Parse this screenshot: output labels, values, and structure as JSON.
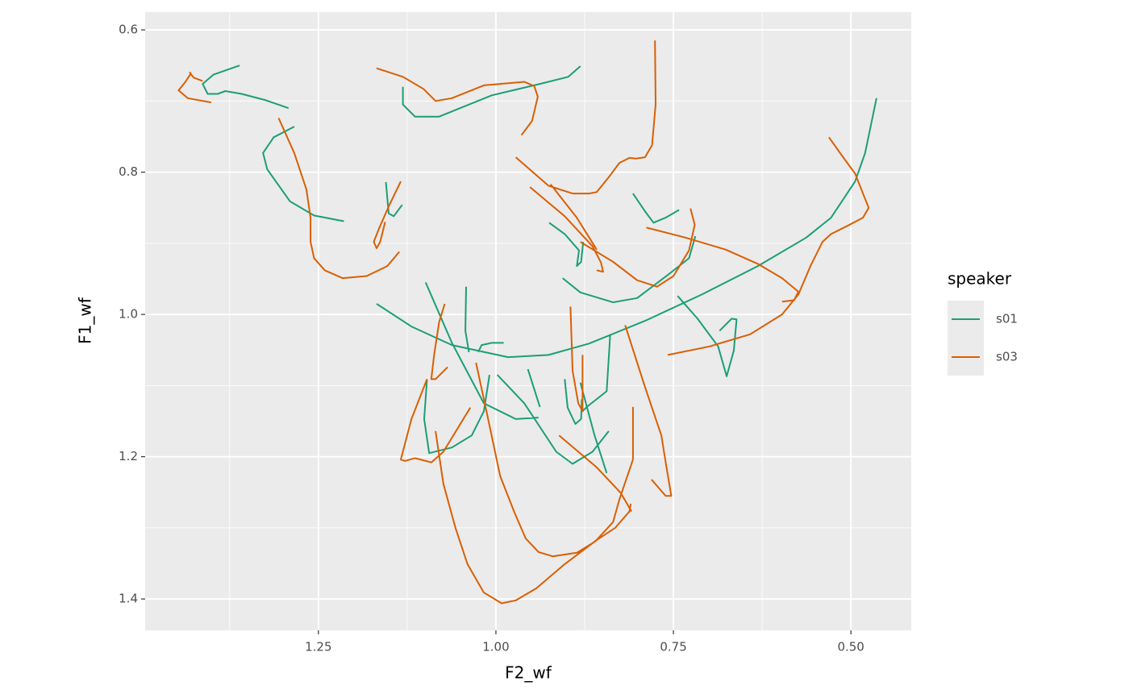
{
  "chart_data": {
    "type": "line",
    "x_label": "F2_wf",
    "y_label": "F1_wf",
    "legend_title": "speaker",
    "legend": "right",
    "xlim": [
      1.494,
      0.415
    ],
    "ylim": [
      1.444,
      0.575
    ],
    "xticks": [
      1.25,
      {
        "value": 1,
        "label": "1.00"
      },
      0.75,
      {
        "value": 0.5,
        "label": "0.50"
      }
    ],
    "yticks": [
      0.6,
      0.8,
      {
        "value": 1,
        "label": "1.0"
      },
      1.2,
      1.4
    ],
    "xminor": [
      1.375,
      1.125,
      0.875,
      0.625
    ],
    "yminor": [
      0.7,
      0.9,
      1.1,
      1.3
    ],
    "grid": true,
    "series": [
      {
        "name": "s01",
        "color": "#1b9e77",
        "x": [
          1.361,
          1.398,
          1.413,
          1.406,
          1.392,
          1.381,
          1.358,
          1.324,
          1.292,
          null,
          0.881,
          0.898,
          0.938,
          1.006,
          1.08,
          1.114,
          1.131,
          1.131,
          null,
          1.284,
          1.313,
          1.328,
          1.322,
          1.29,
          1.256,
          1.214,
          null,
          1.155,
          1.151,
          1.144,
          1.132,
          null,
          1.168,
          1.119,
          1.062,
          0.983,
          0.926,
          0.869,
          0.79,
          0.71,
          0.631,
          0.563,
          0.528,
          0.494,
          0.48,
          0.464,
          null,
          0.807,
          0.79,
          0.778,
          0.761,
          0.742,
          null,
          0.925,
          0.903,
          0.883,
          0.886,
          0.88,
          0.877,
          null,
          0.906,
          0.881,
          0.835,
          0.801,
          0.756,
          0.728,
          0.719,
          null,
          0.744,
          0.716,
          0.687,
          0.675,
          0.665,
          0.661,
          0.668,
          0.685,
          null,
          1.042,
          1.043,
          1.038,
          null,
          1.025,
          1.02,
          1.006,
          0.989,
          null,
          1.099,
          1.062,
          1.017,
          0.972,
          0.94,
          null,
          1.097,
          1.101,
          1.094,
          1.062,
          1.034,
          1.017,
          1.009,
          null,
          0.998,
          0.96,
          0.915,
          0.892,
          0.864,
          0.841,
          null,
          0.903,
          0.899,
          0.888,
          0.88,
          0.879,
          null,
          0.881,
          0.861,
          0.844,
          null,
          0.839,
          0.844,
          0.858,
          0.872,
          0.878,
          null,
          0.955,
          0.938
        ],
        "values": [
          0.65,
          0.663,
          0.676,
          0.69,
          0.69,
          0.686,
          0.69,
          0.699,
          0.71,
          null,
          0.651,
          0.666,
          0.676,
          0.692,
          0.722,
          0.722,
          0.705,
          0.68,
          null,
          0.736,
          0.751,
          0.773,
          0.796,
          0.841,
          0.861,
          0.869,
          null,
          0.814,
          0.858,
          0.862,
          0.846,
          null,
          0.985,
          1.017,
          1.043,
          1.06,
          1.057,
          1.041,
          1.009,
          0.972,
          0.932,
          0.892,
          0.864,
          0.813,
          0.773,
          0.696,
          null,
          0.83,
          0.855,
          0.871,
          0.864,
          0.853,
          null,
          0.871,
          0.887,
          0.91,
          0.932,
          0.926,
          0.898,
          null,
          0.949,
          0.969,
          0.983,
          0.977,
          0.943,
          0.921,
          0.89,
          null,
          0.974,
          1.006,
          1.045,
          1.087,
          1.051,
          1.007,
          1.006,
          1.023,
          null,
          0.961,
          1.023,
          1.053,
          null,
          1.053,
          1.043,
          1.04,
          1.04,
          null,
          0.955,
          1.04,
          1.125,
          1.147,
          1.145,
          null,
          1.091,
          1.147,
          1.195,
          1.187,
          1.17,
          1.136,
          1.085,
          null,
          1.085,
          1.125,
          1.193,
          1.21,
          1.193,
          1.164,
          null,
          1.091,
          1.131,
          1.154,
          1.147,
          1.119,
          null,
          1.096,
          1.17,
          1.223,
          null,
          1.028,
          1.108,
          1.119,
          1.13,
          1.136,
          null,
          1.077,
          1.13
        ]
      },
      {
        "name": "s03",
        "color": "#d95f02",
        "x": [
          1.401,
          1.434,
          1.447,
          1.438,
          1.43,
          1.431,
          1.426,
          1.413,
          null,
          1.168,
          1.131,
          1.102,
          1.085,
          1.062,
          1.017,
          0.96,
          0.946,
          0.941,
          0.949,
          0.964,
          null,
          0.776,
          0.775,
          0.78,
          0.79,
          0.803,
          0.812,
          0.826,
          0.841,
          0.858,
          0.869,
          0.892,
          0.926,
          0.972,
          null,
          1.306,
          1.284,
          1.267,
          1.261,
          1.261,
          1.256,
          1.241,
          1.216,
          1.182,
          1.153,
          1.136,
          null,
          1.134,
          1.15,
          1.165,
          1.172,
          1.168,
          1.163,
          1.156,
          null,
          0.952,
          0.903,
          0.864,
          0.852,
          0.849,
          0.858,
          null,
          0.923,
          0.886,
          0.858,
          null,
          0.881,
          0.835,
          0.801,
          0.773,
          0.75,
          0.728,
          0.72,
          0.726,
          null,
          0.788,
          0.733,
          0.676,
          0.631,
          0.597,
          0.574,
          0.58,
          0.597,
          null,
          0.758,
          0.699,
          0.642,
          0.597,
          0.574,
          0.557,
          0.54,
          0.528,
          0.506,
          0.483,
          0.475,
          0.483,
          0.494,
          0.511,
          0.531,
          null,
          1.072,
          1.08,
          1.087,
          1.091,
          1.085,
          1.068,
          null,
          1.097,
          1.119,
          1.134,
          1.128,
          1.114,
          1.091,
          1.074,
          1.036,
          null,
          1.085,
          1.074,
          1.057,
          1.04,
          1.017,
          0.992,
          0.972,
          0.943,
          0.903,
          0.858,
          0.832,
          0.812,
          0.81,
          null,
          1.028,
          1.011,
          0.994,
          0.974,
          0.958,
          0.94,
          0.92,
          0.886,
          0.86,
          0.835,
          0.826,
          0.807,
          0.807,
          null,
          0.911,
          0.858,
          0.824,
          0.809,
          null,
          0.895,
          0.892,
          0.884,
          0.878,
          0.878,
          null,
          0.818,
          0.79,
          0.767,
          0.76,
          0.753,
          0.761,
          0.781
        ],
        "values": [
          0.702,
          0.696,
          0.685,
          0.674,
          0.662,
          0.66,
          0.667,
          0.672,
          null,
          0.654,
          0.666,
          0.683,
          0.7,
          0.696,
          0.678,
          0.673,
          0.679,
          0.694,
          0.728,
          0.748,
          null,
          0.615,
          0.705,
          0.762,
          0.779,
          0.781,
          0.78,
          0.787,
          0.807,
          0.828,
          0.83,
          0.83,
          0.819,
          0.779,
          null,
          0.724,
          0.773,
          0.824,
          0.864,
          0.898,
          0.921,
          0.938,
          0.949,
          0.946,
          0.932,
          0.912,
          null,
          0.813,
          0.846,
          0.88,
          0.898,
          0.907,
          0.898,
          0.87,
          null,
          0.821,
          0.862,
          0.904,
          0.927,
          0.94,
          0.938,
          null,
          0.817,
          0.864,
          0.909,
          null,
          0.898,
          0.926,
          0.952,
          0.961,
          0.946,
          0.91,
          0.874,
          0.851,
          null,
          0.878,
          0.892,
          0.909,
          0.929,
          0.949,
          0.968,
          0.98,
          0.982,
          null,
          1.057,
          1.045,
          1.028,
          1.0,
          0.972,
          0.932,
          0.898,
          0.887,
          0.876,
          0.864,
          0.85,
          0.83,
          0.802,
          0.779,
          0.751,
          null,
          0.985,
          1.011,
          1.057,
          1.091,
          1.091,
          1.074,
          null,
          1.091,
          1.147,
          1.204,
          1.206,
          1.202,
          1.208,
          1.193,
          1.131,
          null,
          1.164,
          1.238,
          1.3,
          1.351,
          1.391,
          1.406,
          1.402,
          1.385,
          1.351,
          1.317,
          1.3,
          1.277,
          1.266,
          null,
          1.068,
          1.147,
          1.227,
          1.278,
          1.315,
          1.334,
          1.34,
          1.335,
          1.319,
          1.292,
          1.26,
          1.204,
          1.13,
          null,
          1.17,
          1.215,
          1.251,
          1.277,
          null,
          0.989,
          1.079,
          1.125,
          1.136,
          1.057,
          null,
          1.015,
          1.102,
          1.17,
          1.213,
          1.255,
          1.255,
          1.232
        ]
      }
    ]
  }
}
